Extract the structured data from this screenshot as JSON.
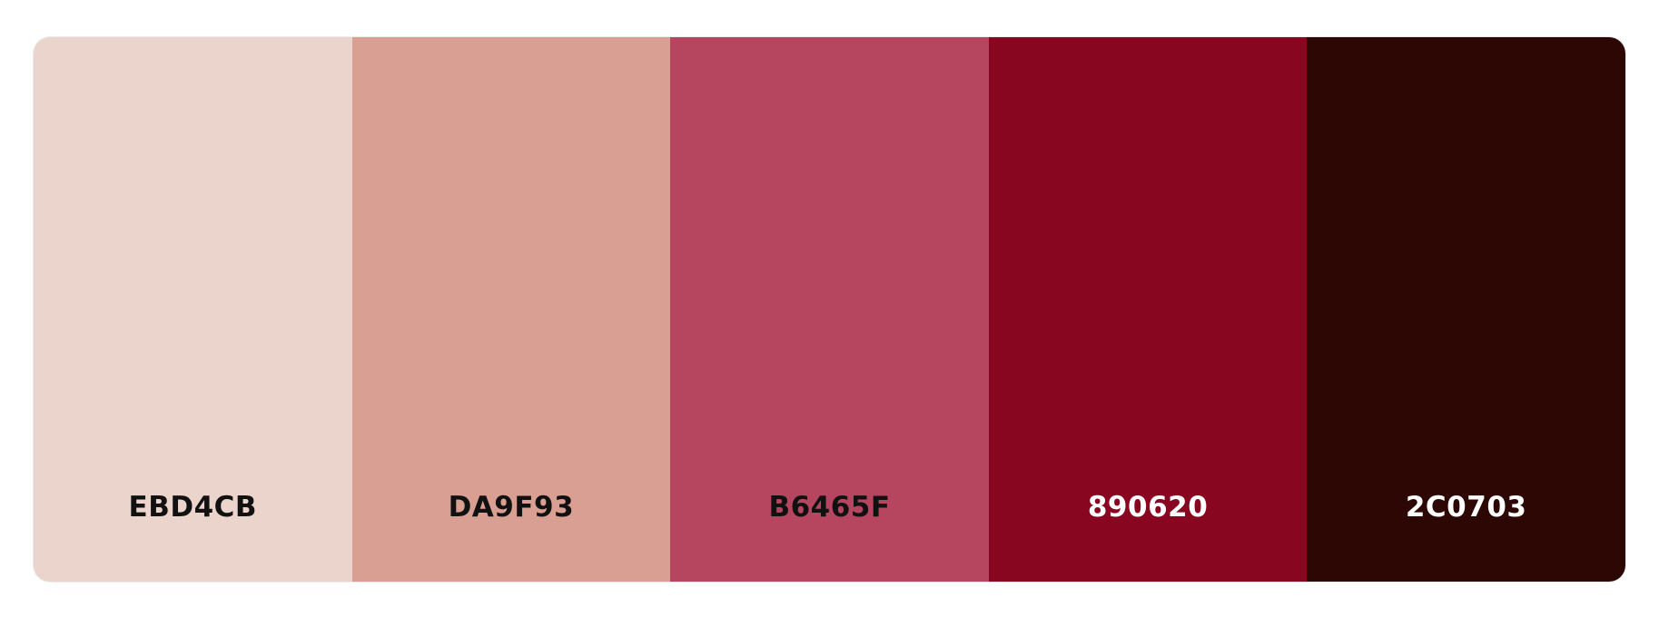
{
  "palette": {
    "swatches": [
      {
        "hex": "EBD4CB",
        "color": "#EBD4CB",
        "text_color": "#111111"
      },
      {
        "hex": "DA9F93",
        "color": "#DA9F93",
        "text_color": "#111111"
      },
      {
        "hex": "B6465F",
        "color": "#B6465F",
        "text_color": "#111111"
      },
      {
        "hex": "890620",
        "color": "#890620",
        "text_color": "#FFFFFF"
      },
      {
        "hex": "2C0703",
        "color": "#2C0703",
        "text_color": "#FFFFFF"
      }
    ]
  }
}
